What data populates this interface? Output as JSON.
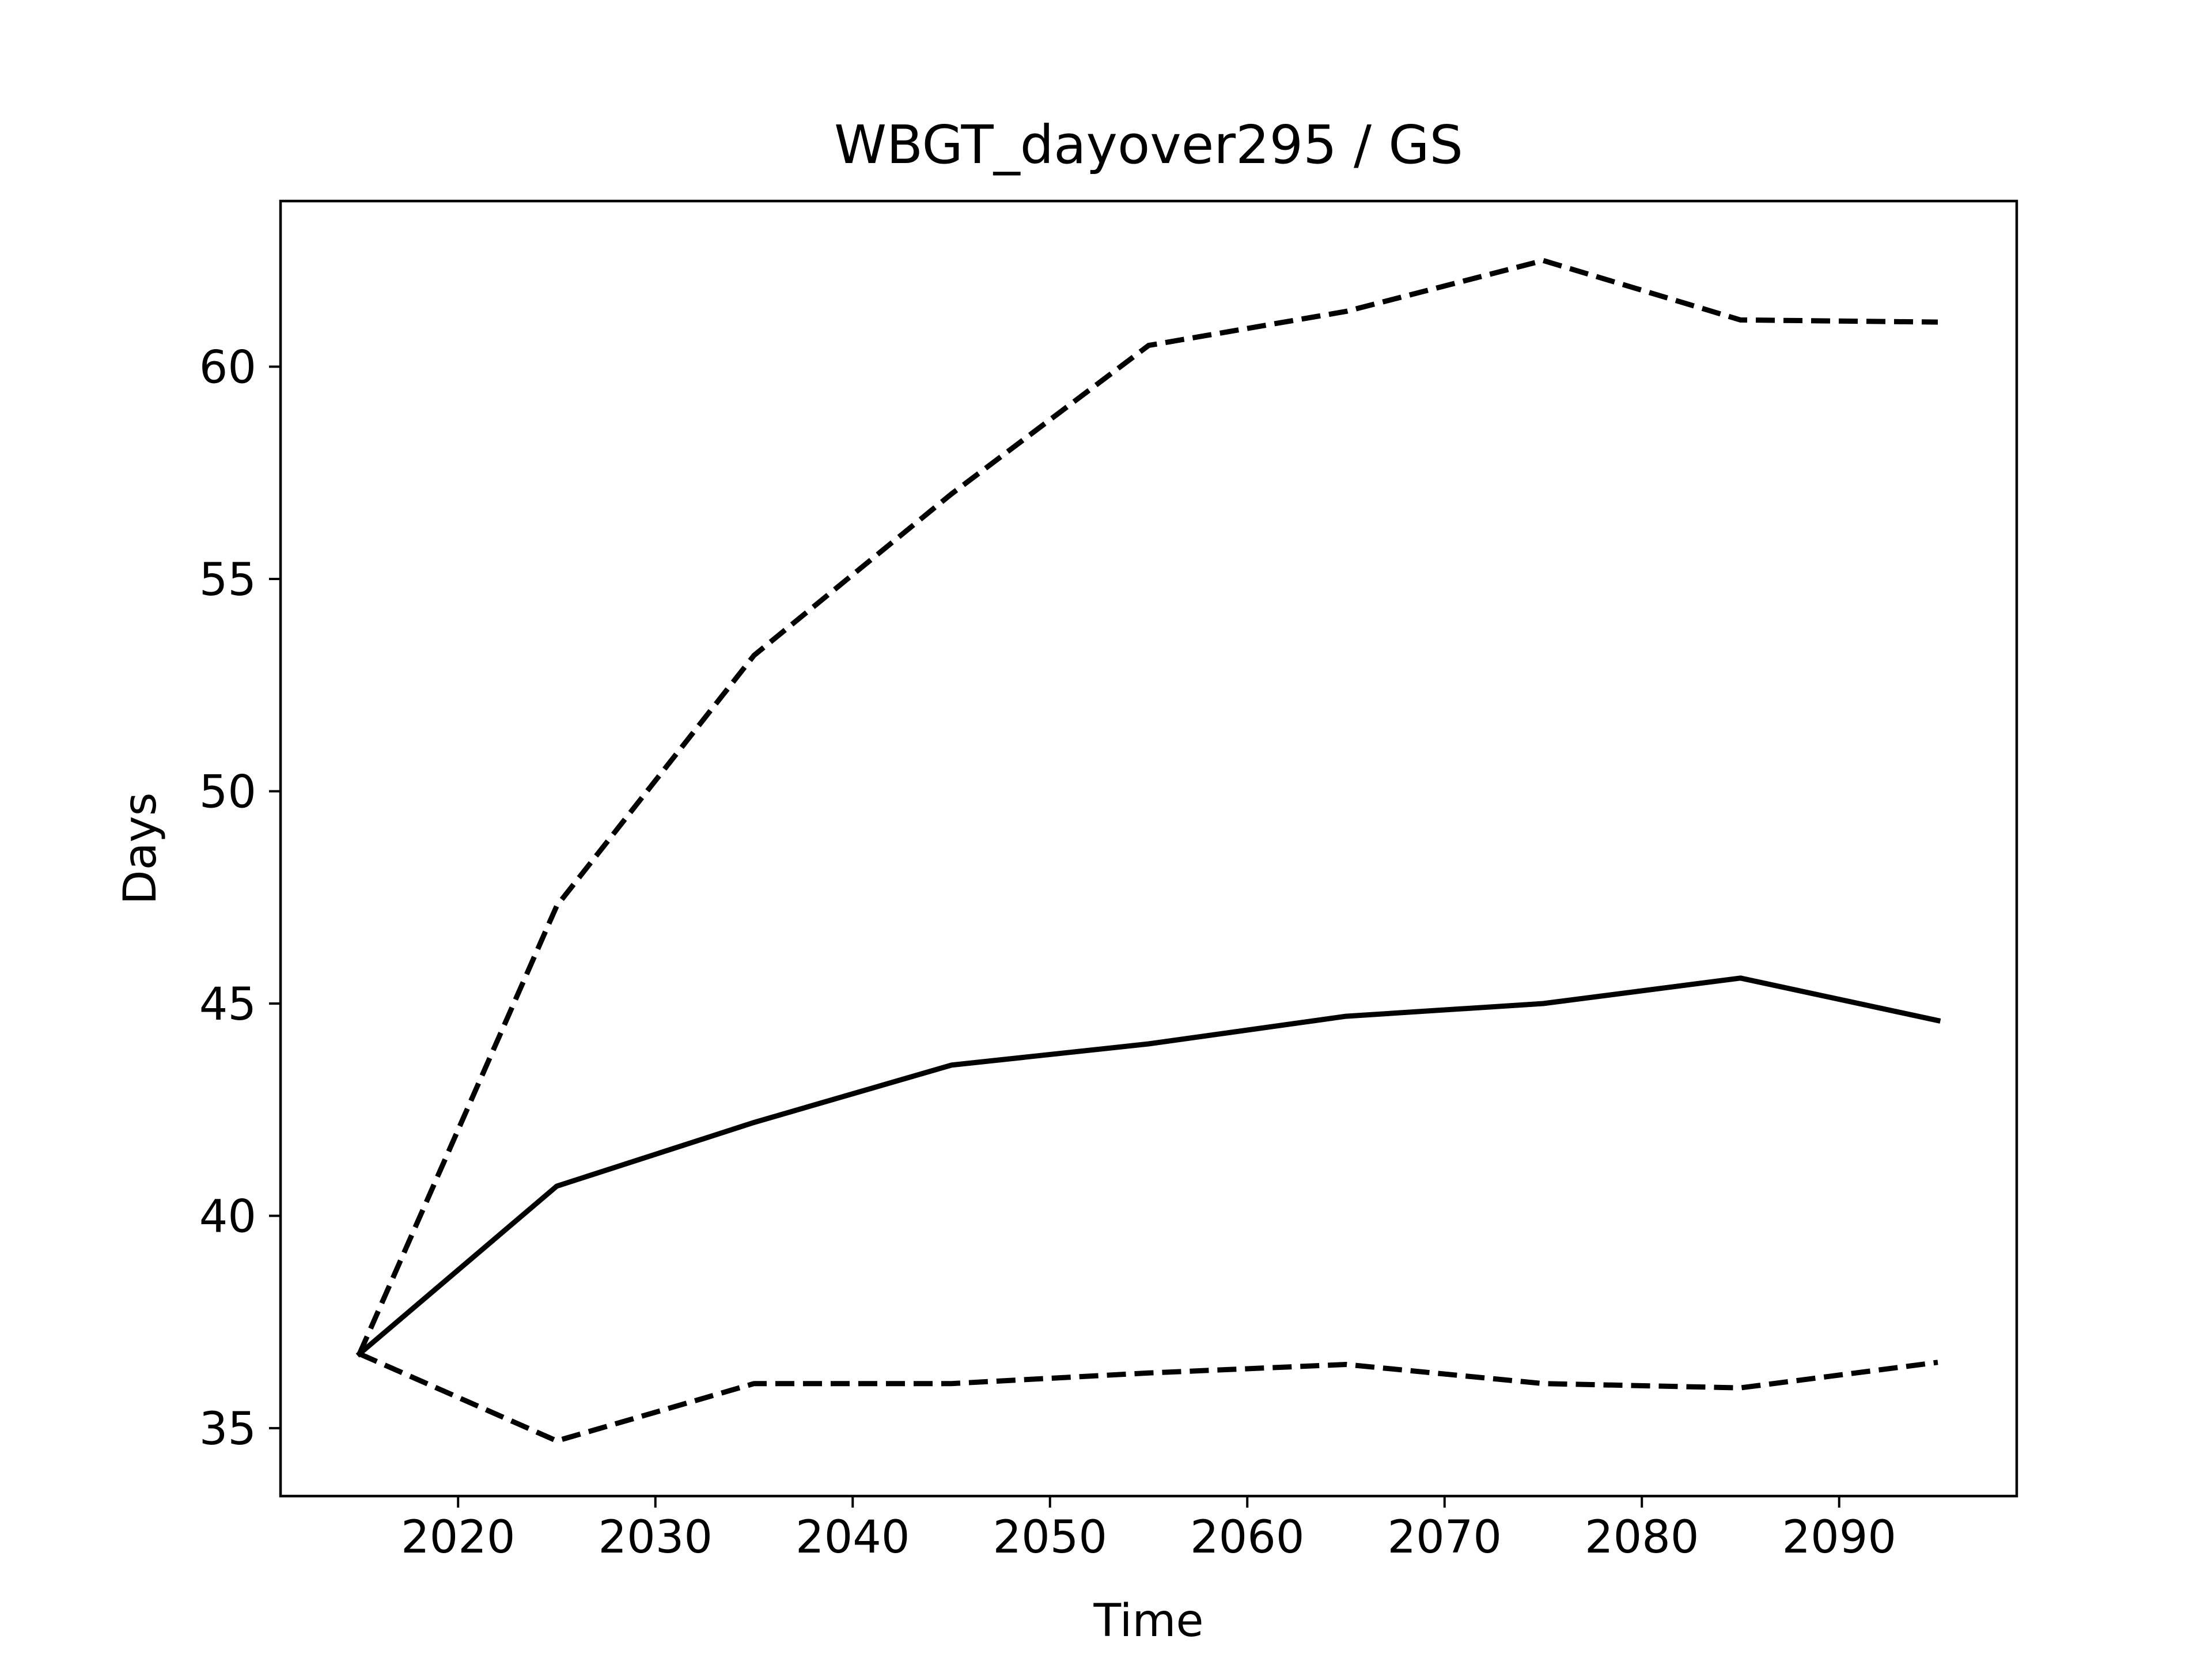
{
  "chart_data": {
    "type": "line",
    "title": "WBGT_dayover295 / GS",
    "xlabel": "Time",
    "ylabel": "Days",
    "xlim": [
      2011,
      2099
    ],
    "ylim": [
      33.4,
      63.9
    ],
    "xticks": [
      2020,
      2030,
      2040,
      2050,
      2060,
      2070,
      2080,
      2090
    ],
    "yticks": [
      35,
      40,
      45,
      50,
      55,
      60
    ],
    "grid": false,
    "x": [
      2015,
      2025,
      2035,
      2045,
      2055,
      2065,
      2075,
      2085,
      2095
    ],
    "series": [
      {
        "style": "dashed",
        "color": "#000000",
        "values": [
          36.75,
          47.3,
          53.2,
          57.0,
          60.5,
          61.3,
          62.5,
          61.1,
          61.05
        ]
      },
      {
        "style": "solid",
        "color": "#000000",
        "values": [
          36.75,
          40.7,
          42.2,
          43.55,
          44.05,
          44.7,
          45.0,
          45.6,
          44.6
        ]
      },
      {
        "style": "dashed",
        "color": "#000000",
        "values": [
          36.75,
          34.7,
          36.05,
          36.05,
          36.3,
          36.5,
          36.05,
          35.95,
          36.55
        ]
      }
    ]
  }
}
